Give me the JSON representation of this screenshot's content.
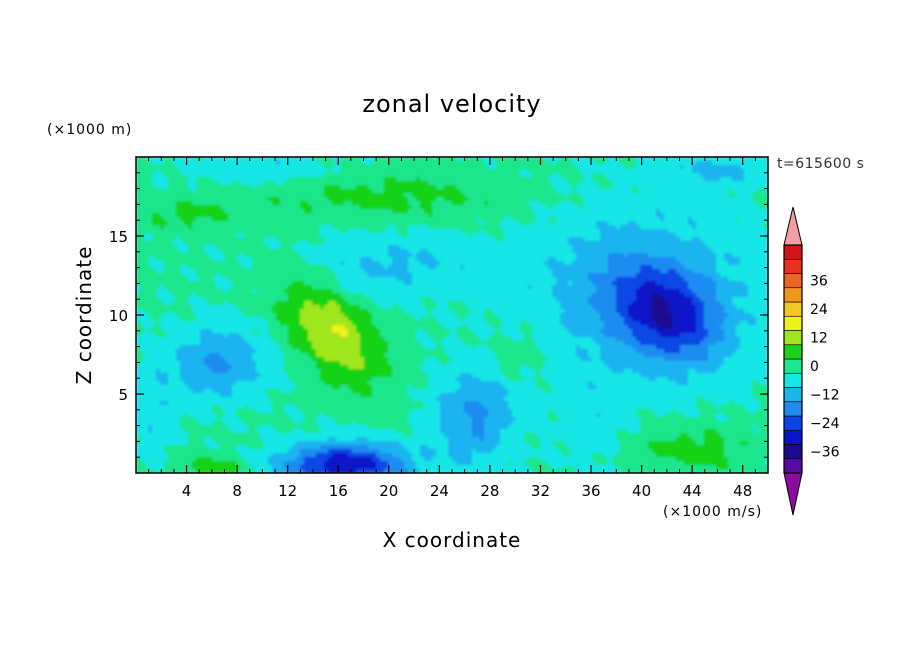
{
  "chart_data": {
    "type": "heatmap",
    "title": "zonal velocity",
    "xlabel": "X coordinate",
    "ylabel": "Z coordinate",
    "y_unit": "(×1000 m)",
    "x_unit": "(×1000 m/s)",
    "time_label": "t=615600 s",
    "xlim": [
      0,
      50
    ],
    "ylim": [
      0,
      20
    ],
    "x_ticks": [
      4,
      8,
      12,
      16,
      20,
      24,
      28,
      32,
      36,
      40,
      44,
      48
    ],
    "y_ticks": [
      5,
      10,
      15
    ],
    "colorbar": {
      "levels": [
        -42,
        -36,
        -30,
        -24,
        -18,
        -12,
        -6,
        0,
        6,
        12,
        18,
        24,
        30,
        36,
        42
      ],
      "labeled_ticks": [
        -36,
        -24,
        -12,
        0,
        12,
        24,
        36
      ],
      "colors": [
        "#5a0aa0",
        "#1e0a8c",
        "#0a14c8",
        "#0a46e6",
        "#1e8cf0",
        "#1eb4f0",
        "#19e6e6",
        "#1ee68c",
        "#19d219",
        "#a0e61e",
        "#f0f01e",
        "#f0c81e",
        "#f0961e",
        "#f0641e",
        "#e6321e",
        "#d21414"
      ],
      "over_color": "#f0a0a0",
      "under_color": "#8c0aa0"
    },
    "features": [
      {
        "x": 15.5,
        "z": 8.9,
        "value": 17,
        "sx": 4.6,
        "sz": 2.4,
        "rot": -35
      },
      {
        "x": 16.5,
        "z": 0.5,
        "value": -30,
        "sx": 5.0,
        "sz": 1.4,
        "rot": 0
      },
      {
        "x": 42.0,
        "z": 10.0,
        "value": -22,
        "sx": 4.2,
        "sz": 2.6,
        "rot": -20
      },
      {
        "x": 6.5,
        "z": 7.0,
        "value": -14,
        "sx": 3.8,
        "sz": 2.2,
        "rot": 0
      },
      {
        "x": 26.7,
        "z": 3.5,
        "value": -14,
        "sx": 3.2,
        "sz": 3.0,
        "rot": 0
      },
      {
        "x": 40.0,
        "z": 11.5,
        "value": -12,
        "sx": 9.0,
        "sz": 5.5,
        "rot": 0
      },
      {
        "x": 44.0,
        "z": 1.5,
        "value": 8,
        "sx": 4.5,
        "sz": 1.6,
        "rot": 0
      },
      {
        "x": 6.0,
        "z": 0.3,
        "value": 8,
        "sx": 3.2,
        "sz": 0.8,
        "rot": 0
      },
      {
        "x": 20.0,
        "z": 17.5,
        "value": 7,
        "sx": 11.0,
        "sz": 1.6,
        "rot": 0
      },
      {
        "x": 4.0,
        "z": 16.3,
        "value": 6,
        "sx": 4.5,
        "sz": 1.0,
        "rot": 0
      },
      {
        "x": 30.0,
        "z": 7.5,
        "value": 5,
        "sx": 2.5,
        "sz": 1.6,
        "rot": 0
      },
      {
        "x": 20.0,
        "z": 13.2,
        "value": -8,
        "sx": 7.0,
        "sz": 2.0,
        "rot": 0
      },
      {
        "x": 46.0,
        "z": 19.2,
        "value": -8,
        "sx": 4.0,
        "sz": 1.0,
        "rot": 0
      },
      {
        "x": 10.0,
        "z": 19.2,
        "value": -7,
        "sx": 6.0,
        "sz": 1.0,
        "rot": 0
      },
      {
        "x": 1.5,
        "z": 3.5,
        "value": -6,
        "sx": 1.5,
        "sz": 3.5,
        "rot": 0
      },
      {
        "x": 36.0,
        "z": 3.0,
        "value": -4,
        "sx": 3.0,
        "sz": 3.0,
        "rot": 0
      }
    ]
  }
}
